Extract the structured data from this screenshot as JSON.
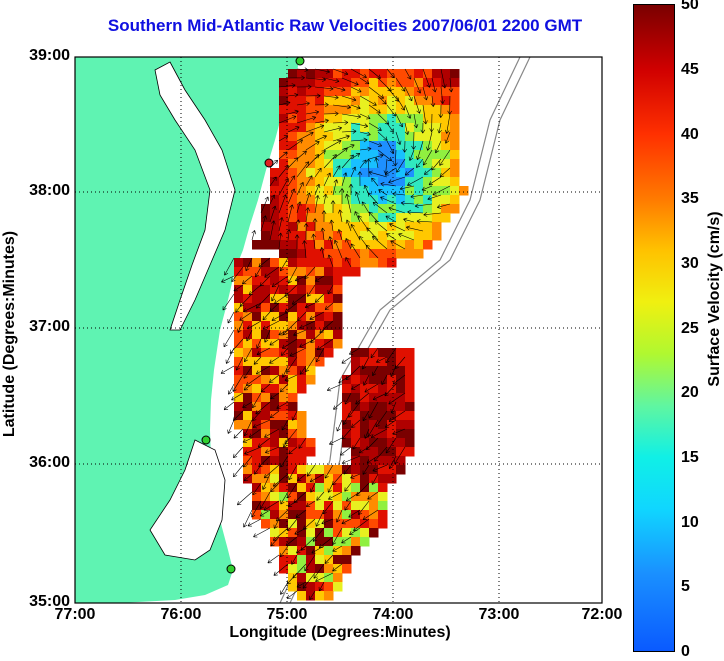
{
  "title": "Southern Mid-Atlantic Raw Velocities 2007/06/01 2200 GMT",
  "xaxis": {
    "label": "Longitude (Degrees:Minutes)",
    "ticks": [
      "77:00",
      "76:00",
      "75:00",
      "74:00",
      "73:00",
      "72:00"
    ]
  },
  "yaxis": {
    "label": "Latitude (Degrees:Minutes)",
    "ticks": [
      "39:00",
      "38:00",
      "37:00",
      "36:00",
      "35:00"
    ]
  },
  "colorbar": {
    "label": "Surface Velocity (cm/s)",
    "ticks": [
      "50",
      "45",
      "40",
      "35",
      "30",
      "25",
      "20",
      "15",
      "10",
      "5",
      "0"
    ],
    "range": [
      0,
      50
    ]
  },
  "colors": {
    "title": "#1010e0",
    "land": "#5ff3b2",
    "grid": "#000000"
  }
}
